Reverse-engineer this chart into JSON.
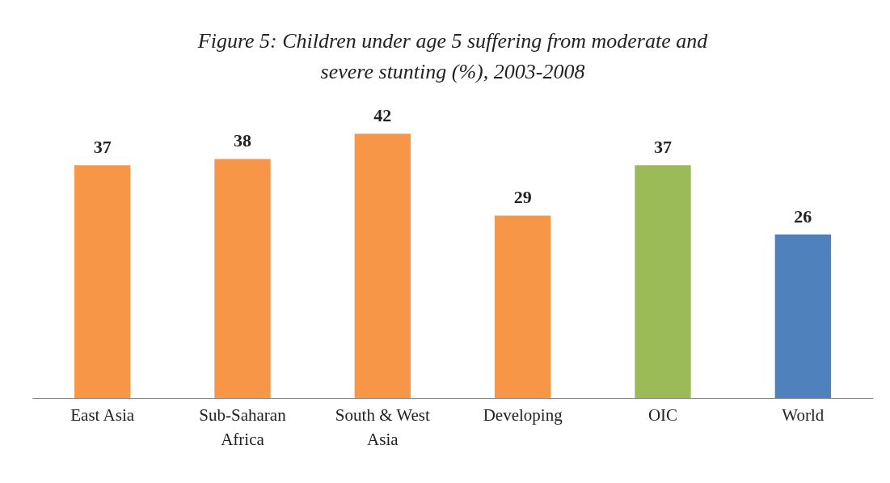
{
  "chart_data": {
    "type": "bar",
    "title": "Figure 5: Children under age 5 suffering from moderate and severe stunting (%), 2003-2008",
    "categories": [
      "East Asia",
      "Sub-Saharan Africa",
      "South & West Asia",
      "Developing",
      "OIC",
      "World"
    ],
    "values": [
      37,
      38,
      42,
      29,
      37,
      26
    ],
    "colors": [
      "#f79646",
      "#f79646",
      "#f79646",
      "#f79646",
      "#9bbb59",
      "#4f81bd"
    ],
    "data_labels": true
  }
}
